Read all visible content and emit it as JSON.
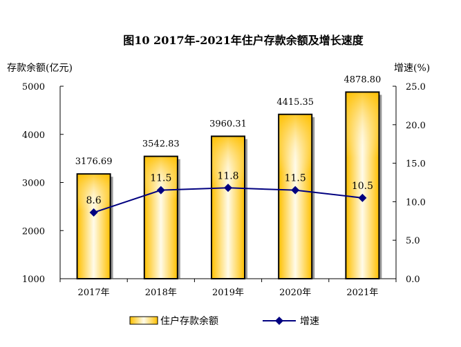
{
  "chart_data": {
    "type": "bar+line",
    "title": "图10   2017年-2021年住户存款余额及增长速度",
    "ylabel_left": "存款余额(亿元)",
    "ylabel_right": "增速(%)",
    "categories": [
      "2017年",
      "2018年",
      "2019年",
      "2020年",
      "2021年"
    ],
    "ylim_left": [
      1000,
      5000
    ],
    "yticks_left": [
      "1000",
      "2000",
      "3000",
      "4000",
      "5000"
    ],
    "ylim_right": [
      0,
      25
    ],
    "yticks_right": [
      "0.0",
      "5.0",
      "10.0",
      "15.0",
      "20.0",
      "25.0"
    ],
    "series": [
      {
        "name": "住户存款余额",
        "type": "bar",
        "axis": "left",
        "values": [
          3176.69,
          3542.83,
          3960.31,
          4415.35,
          4878.8
        ],
        "labels": [
          "3176.69",
          "3542.83",
          "3960.31",
          "4415.35",
          "4878.80"
        ],
        "color": "#FFC000"
      },
      {
        "name": "增速",
        "type": "line",
        "axis": "right",
        "values": [
          8.6,
          11.5,
          11.8,
          11.5,
          10.5
        ],
        "labels": [
          "8.6",
          "11.5",
          "11.8",
          "11.5",
          "10.5"
        ],
        "color": "#000080"
      }
    ],
    "legend": "bottom",
    "grid": false
  }
}
